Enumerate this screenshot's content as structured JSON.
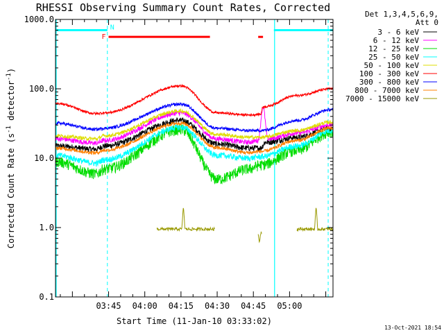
{
  "chart_data": {
    "type": "line",
    "title": "RHESSI Observing Summary Count Rates, Corrected",
    "xlabel": "Start Time (11-Jan-10 03:33:02)",
    "ylabel_main": "Corrected Count Rate (s",
    "ylabel_sup1": "-1",
    "ylabel_mid": " detector",
    "ylabel_sup2": "-1",
    "ylabel_end": ")",
    "y_scale": "log",
    "ylim": [
      0.1,
      1000
    ],
    "xlim_min": [
      -22,
      93
    ],
    "x_ticks": [
      {
        "t": 0,
        "label": "03:45"
      },
      {
        "t": 15,
        "label": "04:00"
      },
      {
        "t": 30,
        "label": "04:15"
      },
      {
        "t": 45,
        "label": "04:30"
      },
      {
        "t": 60,
        "label": "04:45"
      },
      {
        "t": 75,
        "label": "05:00"
      }
    ],
    "y_ticks": [
      {
        "v": 0.1,
        "label": "0.1"
      },
      {
        "v": 1,
        "label": "1.0"
      },
      {
        "v": 10,
        "label": "10.0"
      },
      {
        "v": 100,
        "label": "100.0"
      },
      {
        "v": 1000,
        "label": "1000.0"
      }
    ],
    "detector_header_line1": "Det 1,3,4,5,6,9,",
    "detector_header_line2": "Att 0",
    "legend": [
      {
        "label": "3 - 6 keV",
        "color": "#000000"
      },
      {
        "label": "6 - 12 keV",
        "color": "#ff00ff"
      },
      {
        "label": "12 - 25 keV",
        "color": "#00dd00"
      },
      {
        "label": "25 - 50 keV",
        "color": "#00ffff"
      },
      {
        "label": "50 - 100 keV",
        "color": "#dddd00"
      },
      {
        "label": "100 - 300 keV",
        "color": "#ff0000"
      },
      {
        "label": "300 - 800 keV",
        "color": "#0000ff"
      },
      {
        "label": "800 - 7000 keV",
        "color": "#ff8000"
      },
      {
        "label": "7000 - 15000 keV",
        "color": "#999900"
      }
    ],
    "series": [
      {
        "name": "3 - 6 keV",
        "color": "#000000",
        "base": 15,
        "amp": 2.4,
        "noise": 0.1,
        "anchors": [
          [
            -22,
            15
          ],
          [
            -5,
            13.5
          ],
          [
            -2,
            15
          ],
          [
            30,
            35
          ],
          [
            45,
            16
          ],
          [
            58,
            14
          ],
          [
            63,
            14
          ],
          [
            65,
            17
          ],
          [
            78,
            20
          ],
          [
            92,
            27
          ]
        ]
      },
      {
        "name": "6 - 12 keV",
        "color": "#ff00ff",
        "anchors": [
          [
            -22,
            19
          ],
          [
            -5,
            16.5
          ],
          [
            -2,
            18
          ],
          [
            30,
            45
          ],
          [
            45,
            19
          ],
          [
            58,
            17
          ],
          [
            62,
            18
          ],
          [
            64,
            55
          ],
          [
            66,
            19
          ],
          [
            78,
            23
          ],
          [
            92,
            30
          ]
        ],
        "noise": 0.08
      },
      {
        "name": "12 - 25 keV",
        "color": "#00dd00",
        "anchors": [
          [
            -22,
            9
          ],
          [
            -5,
            6
          ],
          [
            -2,
            7
          ],
          [
            30,
            26
          ],
          [
            45,
            5
          ],
          [
            58,
            7
          ],
          [
            63,
            8
          ],
          [
            78,
            13
          ],
          [
            92,
            24
          ]
        ],
        "noise": 0.18
      },
      {
        "name": "25 - 50 keV",
        "color": "#00ffff",
        "anchors": [
          [
            -22,
            11
          ],
          [
            -5,
            8.5
          ],
          [
            -2,
            9.5
          ],
          [
            30,
            28
          ],
          [
            45,
            11
          ],
          [
            58,
            10
          ],
          [
            63,
            10.5
          ],
          [
            78,
            15
          ],
          [
            92,
            25
          ]
        ],
        "noise": 0.1
      },
      {
        "name": "50 - 100 keV",
        "color": "#dddd00",
        "anchors": [
          [
            -22,
            21
          ],
          [
            -5,
            19
          ],
          [
            -2,
            21
          ],
          [
            30,
            48
          ],
          [
            45,
            22
          ],
          [
            58,
            20
          ],
          [
            63,
            20
          ],
          [
            78,
            25
          ],
          [
            92,
            33
          ]
        ],
        "noise": 0.06
      },
      {
        "name": "100 - 300 keV",
        "color": "#ff0000",
        "anchors": [
          [
            -22,
            62
          ],
          [
            -5,
            44
          ],
          [
            -2,
            45
          ],
          [
            30,
            110
          ],
          [
            45,
            45
          ],
          [
            58,
            42
          ],
          [
            63,
            43
          ],
          [
            64,
            55
          ],
          [
            78,
            80
          ],
          [
            92,
            100
          ]
        ],
        "noise": 0.04
      },
      {
        "name": "300 - 800 keV",
        "color": "#0000ff",
        "anchors": [
          [
            -22,
            32
          ],
          [
            -5,
            26
          ],
          [
            -2,
            27
          ],
          [
            30,
            60
          ],
          [
            45,
            27
          ],
          [
            58,
            25
          ],
          [
            63,
            25
          ],
          [
            78,
            35
          ],
          [
            92,
            50
          ]
        ],
        "noise": 0.05
      },
      {
        "name": "800 - 7000 keV",
        "color": "#ff8000",
        "anchors": [
          [
            -22,
            14
          ],
          [
            -5,
            12
          ],
          [
            -2,
            13
          ],
          [
            30,
            32
          ],
          [
            45,
            14
          ],
          [
            58,
            12
          ],
          [
            63,
            12.5
          ],
          [
            78,
            18
          ],
          [
            92,
            27
          ]
        ],
        "noise": 0.06
      }
    ],
    "spikes_7000": [
      {
        "t_start": 20,
        "t_end": 44,
        "base": 0.95,
        "peak_t": 31,
        "peak": 2.0
      },
      {
        "t_start": 62,
        "t_end": 63.5,
        "base": 0.85,
        "peak_t": 62.5,
        "peak": 0.6
      },
      {
        "t_start": 78,
        "t_end": 93,
        "base": 0.95,
        "peak_t": 86,
        "peak": 2.0
      }
    ],
    "night_intervals": [
      [
        -22,
        -0.5
      ],
      [
        68.5,
        93
      ]
    ],
    "night_y": 700,
    "flare_intervals": [
      [
        0,
        42
      ],
      [
        62,
        64
      ]
    ],
    "flare_y": 560,
    "night_boundaries_solid": [
      -22,
      68.5
    ],
    "night_boundaries_dashed": [
      -0.5,
      91
    ],
    "flag_N": "N",
    "flag_F": "F",
    "night_color": "#00ffff",
    "flare_color": "#ff0000"
  },
  "timestamp": "13-Oct-2021 18:54"
}
